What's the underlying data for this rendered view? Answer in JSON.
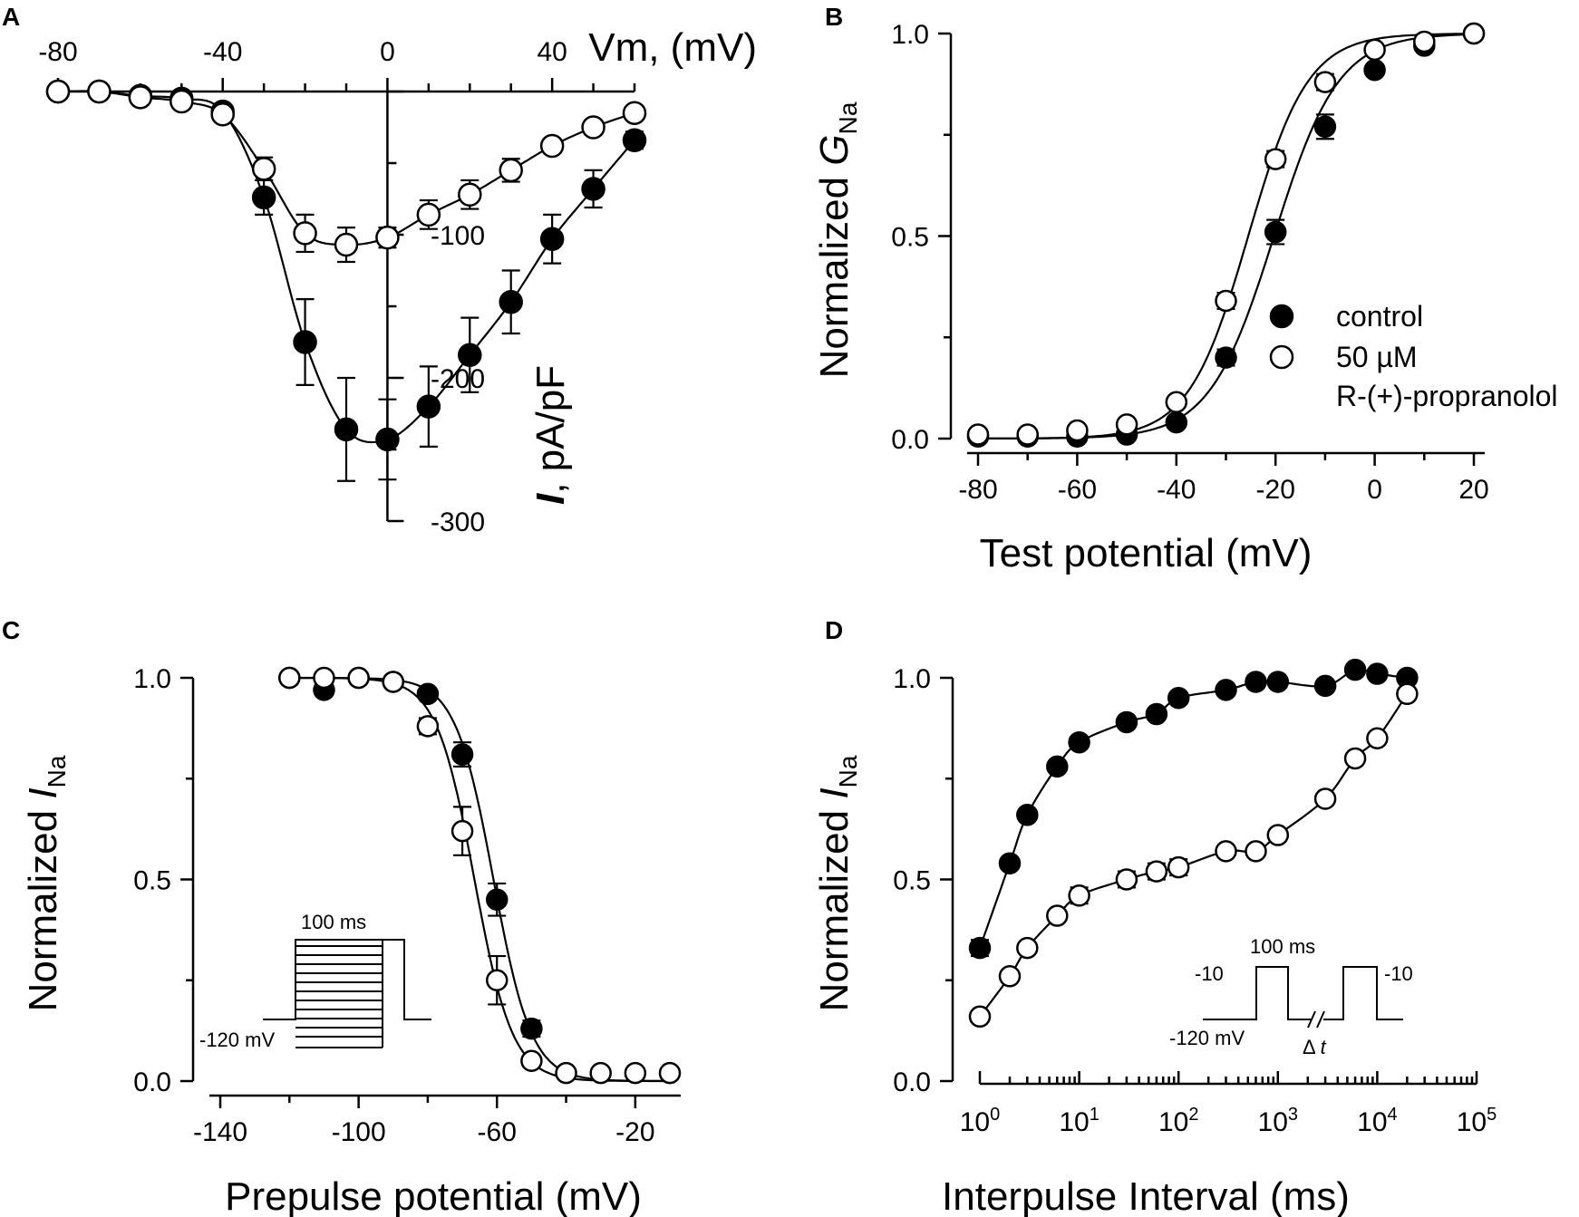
{
  "chart_data": [
    {
      "panel": "A",
      "type": "line",
      "xlabel": "Vm, (mV)",
      "ylabel_italic": "I",
      "ylabel_rest": ", pA/pF",
      "xlim": [
        -80,
        60
      ],
      "ylim": [
        -300,
        0
      ],
      "xtick_labels": [
        {
          "value": -80,
          "label": "-80"
        },
        {
          "value": -40,
          "label": "-40"
        },
        {
          "value": 0,
          "label": "0"
        },
        {
          "value": 40,
          "label": "40"
        }
      ],
      "ytick_labels": [
        {
          "value": -100,
          "label": "-100"
        },
        {
          "value": -200,
          "label": "-200"
        },
        {
          "value": -300,
          "label": "-300"
        }
      ],
      "series": [
        {
          "name": "control",
          "marker": "filled",
          "x": [
            -80,
            -70,
            -60,
            -50,
            -40,
            -30,
            -20,
            -10,
            0,
            10,
            20,
            30,
            40,
            50,
            60
          ],
          "y": [
            0,
            0,
            -3,
            -5,
            -14,
            -74,
            -175,
            -236,
            -243,
            -220,
            -184,
            -147,
            -103,
            -68,
            -34
          ],
          "err": [
            0,
            0,
            2,
            3,
            4,
            12,
            30,
            36,
            28,
            28,
            26,
            22,
            17,
            13,
            6
          ]
        },
        {
          "name": "50 µM R-(+)-propranolol",
          "marker": "open",
          "x": [
            -80,
            -70,
            -60,
            -50,
            -40,
            -30,
            -20,
            -10,
            0,
            10,
            20,
            30,
            40,
            50,
            60
          ],
          "y": [
            0,
            0,
            -4,
            -7,
            -16,
            -54,
            -99,
            -107,
            -102,
            -86,
            -72,
            -55,
            -38,
            -25,
            -15
          ],
          "err": [
            0,
            0,
            2,
            3,
            4,
            8,
            13,
            12,
            7,
            10,
            10,
            8,
            5,
            3,
            3
          ]
        }
      ]
    },
    {
      "panel": "B",
      "type": "scatter",
      "xlabel": "Test potential (mV)",
      "ylabel_main": "Normalized ",
      "ylabel_italic": "G",
      "ylabel_sub": "Na",
      "xlim": [
        -80,
        20
      ],
      "ylim": [
        0,
        1
      ],
      "xtick_labels": [
        {
          "value": -80,
          "label": "-80"
        },
        {
          "value": -60,
          "label": "-60"
        },
        {
          "value": -40,
          "label": "-40"
        },
        {
          "value": -20,
          "label": "-20"
        },
        {
          "value": 0,
          "label": "0"
        },
        {
          "value": 20,
          "label": "20"
        }
      ],
      "ytick_labels": [
        {
          "value": 0,
          "label": "0.0"
        },
        {
          "value": 0.5,
          "label": "0.5"
        },
        {
          "value": 1,
          "label": "1.0"
        }
      ],
      "legend": [
        {
          "marker": "filled",
          "label": "control"
        },
        {
          "marker": "open",
          "label": "50 µM"
        },
        {
          "marker": "none",
          "label": "R-(+)-propranolol"
        }
      ],
      "series": [
        {
          "name": "control",
          "marker": "filled",
          "x": [
            -80,
            -70,
            -60,
            -50,
            -40,
            -30,
            -20,
            -10,
            0,
            10,
            20
          ],
          "y": [
            0.005,
            0.005,
            0.005,
            0.01,
            0.04,
            0.2,
            0.51,
            0.77,
            0.91,
            0.97,
            1.0
          ],
          "err": [
            0,
            0,
            0,
            0,
            0.01,
            0.02,
            0.03,
            0.03,
            0.01,
            0.01,
            0
          ],
          "fit": {
            "v_half": -20.3,
            "k": 6.5
          }
        },
        {
          "name": "50 µM R-(+)-propranolol",
          "marker": "open",
          "x": [
            -80,
            -70,
            -60,
            -50,
            -40,
            -30,
            -20,
            -10,
            0,
            10,
            20
          ],
          "y": [
            0.01,
            0.01,
            0.02,
            0.035,
            0.09,
            0.34,
            0.69,
            0.88,
            0.96,
            0.98,
            1.0
          ],
          "err": [
            0,
            0,
            0,
            0.005,
            0.01,
            0.02,
            0.02,
            0.02,
            0.01,
            0.005,
            0
          ],
          "fit": {
            "v_half": -25.5,
            "k": 6.0
          }
        }
      ]
    },
    {
      "panel": "C",
      "type": "scatter",
      "xlabel": "Prepulse potential (mV)",
      "ylabel_main": "Normalized ",
      "ylabel_italic": "I",
      "ylabel_sub": "Na",
      "xlim": [
        -140,
        -10
      ],
      "ylim": [
        0,
        1
      ],
      "xtick_labels": [
        {
          "value": -140,
          "label": "-140"
        },
        {
          "value": -100,
          "label": "-100"
        },
        {
          "value": -60,
          "label": "-60"
        },
        {
          "value": -20,
          "label": "-20"
        }
      ],
      "ytick_labels": [
        {
          "value": 0,
          "label": "0.0"
        },
        {
          "value": 0.5,
          "label": "0.5"
        },
        {
          "value": 1,
          "label": "1.0"
        }
      ],
      "inset": {
        "duration_label": "100 ms",
        "holding_label": "-120 mV"
      },
      "series": [
        {
          "name": "control",
          "marker": "filled",
          "x": [
            -120,
            -110,
            -100,
            -90,
            -80,
            -70,
            -60,
            -50
          ],
          "y": [
            1.0,
            0.97,
            1.0,
            0.99,
            0.96,
            0.81,
            0.45,
            0.13
          ],
          "err": [
            0,
            0,
            0,
            0,
            0.01,
            0.03,
            0.04,
            0.02
          ],
          "fit": {
            "v_half": -61.0,
            "k": 5.5
          }
        },
        {
          "name": "50 µM R-(+)-propranolol",
          "marker": "open",
          "x": [
            -120,
            -110,
            -100,
            -90,
            -80,
            -70,
            -60,
            -50,
            -40,
            -30,
            -20,
            -10
          ],
          "y": [
            1.0,
            1.0,
            1.0,
            0.99,
            0.88,
            0.62,
            0.25,
            0.05,
            0.02,
            0.02,
            0.02,
            0.02
          ],
          "err": [
            0,
            0,
            0,
            0,
            0.02,
            0.06,
            0.06,
            0.01,
            0,
            0,
            0,
            0
          ],
          "fit": {
            "v_half": -66.5,
            "k": 5.5
          }
        }
      ]
    },
    {
      "panel": "D",
      "type": "scatter",
      "xlabel": "Interpulse Interval (ms)",
      "ylabel_main": "Normalized ",
      "ylabel_italic": "I",
      "ylabel_sub": "Na",
      "xscale": "log",
      "xlim": [
        1,
        100000
      ],
      "ylim": [
        0,
        1
      ],
      "xtick_labels": [
        {
          "value": 1,
          "base": "10",
          "exp": "0"
        },
        {
          "value": 10,
          "base": "10",
          "exp": "1"
        },
        {
          "value": 100,
          "base": "10",
          "exp": "2"
        },
        {
          "value": 1000,
          "base": "10",
          "exp": "3"
        },
        {
          "value": 10000,
          "base": "10",
          "exp": "4"
        },
        {
          "value": 100000,
          "base": "10",
          "exp": "5"
        }
      ],
      "ytick_labels": [
        {
          "value": 0,
          "label": "0.0"
        },
        {
          "value": 0.5,
          "label": "0.5"
        },
        {
          "value": 1,
          "label": "1.0"
        }
      ],
      "inset": {
        "duration_label": "100 ms",
        "left_pulse_label": "-10",
        "right_pulse_label": "-10",
        "holding_label": "-120 mV",
        "interval_label_prefix": "Δ ",
        "interval_label_italic": "t"
      },
      "series": [
        {
          "name": "control",
          "marker": "filled",
          "x": [
            1,
            2,
            3,
            6,
            10,
            30,
            60,
            100,
            300,
            600,
            1000,
            3000,
            6000,
            10000,
            20000
          ],
          "y": [
            0.33,
            0.54,
            0.66,
            0.78,
            0.84,
            0.89,
            0.91,
            0.95,
            0.97,
            0.99,
            0.99,
            0.98,
            1.02,
            1.01,
            1.0
          ],
          "err": [
            0.02,
            0,
            0.01,
            0,
            0,
            0,
            0.01,
            0,
            0,
            0,
            0,
            0,
            0,
            0,
            0
          ]
        },
        {
          "name": "50 µM R-(+)-propranolol",
          "marker": "open",
          "x": [
            1,
            2,
            3,
            6,
            10,
            30,
            60,
            100,
            300,
            600,
            1000,
            3000,
            6000,
            10000,
            20000
          ],
          "y": [
            0.16,
            0.26,
            0.33,
            0.41,
            0.46,
            0.5,
            0.52,
            0.53,
            0.57,
            0.57,
            0.61,
            0.7,
            0.8,
            0.85,
            0.96
          ],
          "err": [
            0,
            0,
            0,
            0.01,
            0.02,
            0.02,
            0.02,
            0.02,
            0,
            0,
            0,
            0,
            0,
            0,
            0
          ]
        }
      ]
    }
  ]
}
